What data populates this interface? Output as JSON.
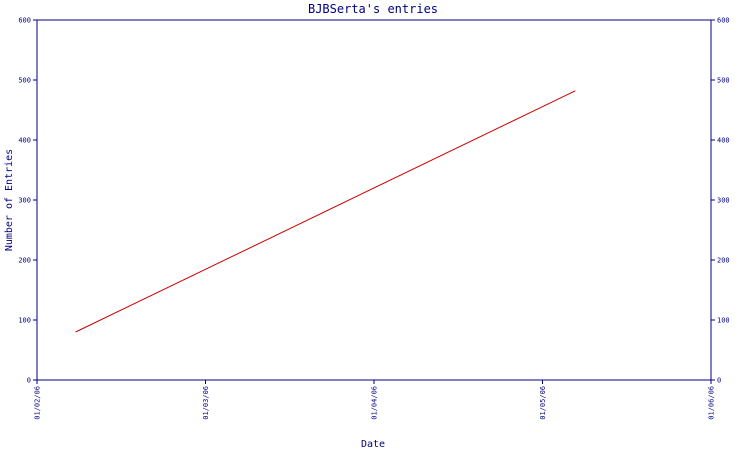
{
  "chart_data": {
    "type": "line",
    "title": "BJBSerta's entries",
    "xlabel": "Date",
    "ylabel": "Number of Entries",
    "x_ticks": [
      "01/02/06",
      "01/03/06",
      "01/04/06",
      "01/05/06",
      "01/06/06"
    ],
    "xlim": [
      "2006-01-02",
      "2006-01-06"
    ],
    "y_ticks": [
      0,
      100,
      200,
      300,
      400,
      500,
      600
    ],
    "ylim": [
      0,
      600
    ],
    "right_axis": true,
    "grid": false,
    "series": [
      {
        "color": "#cc0000",
        "points": [
          {
            "x": "2006-01-02 05:30",
            "y": 80
          },
          {
            "x": "2006-01-05 04:40",
            "y": 482
          }
        ]
      }
    ]
  },
  "colors": {
    "axis": "#000080",
    "line": "#cc0000",
    "background": "#ffffff"
  }
}
